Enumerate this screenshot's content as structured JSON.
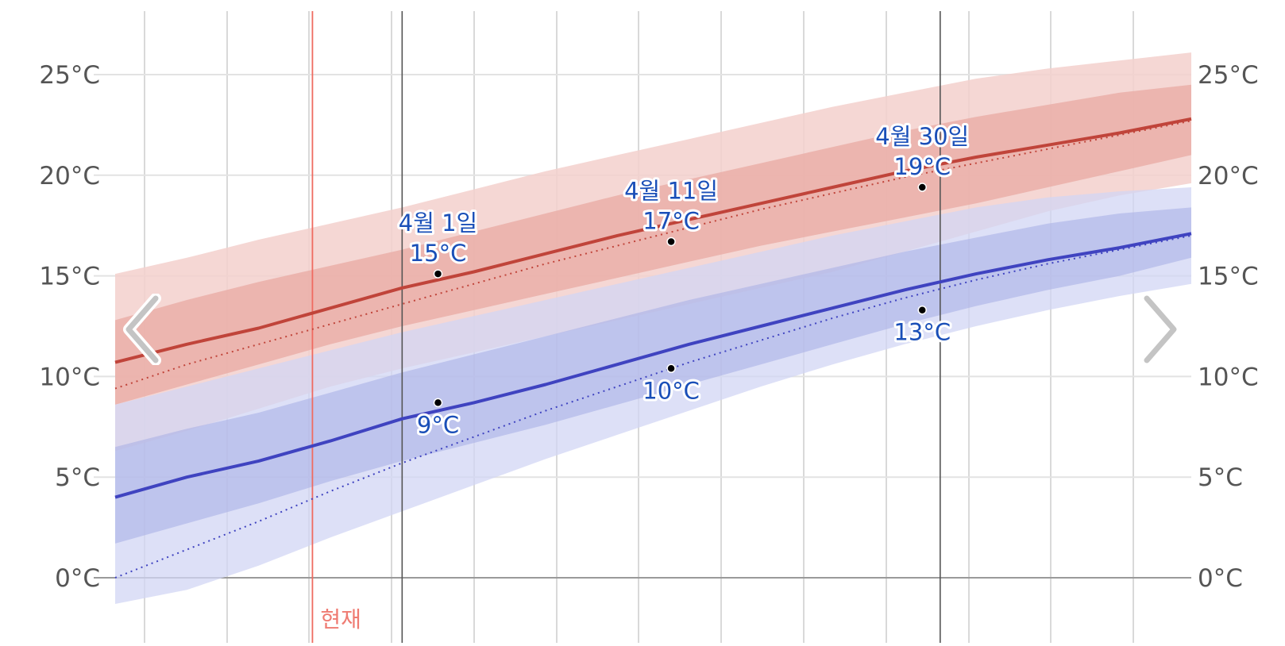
{
  "chart_data": {
    "type": "area",
    "unit": "°C",
    "y_ticks": [
      0,
      5,
      10,
      15,
      20,
      25
    ],
    "y_tick_labels": [
      "0°C",
      "5°C",
      "10°C",
      "15°C",
      "20°C",
      "25°C"
    ],
    "ylim": [
      -3.5,
      28.5
    ],
    "grid": true,
    "x": [
      -15,
      -11,
      -7,
      -3,
      1,
      5,
      9,
      13,
      17,
      21,
      25,
      29,
      33,
      37,
      41,
      45
    ],
    "series": [
      {
        "role": "high",
        "color": "#c0443a",
        "mean": [
          10.7,
          11.6,
          12.4,
          13.4,
          14.4,
          15.2,
          16.1,
          17.0,
          17.8,
          18.6,
          19.4,
          20.2,
          20.9,
          21.5,
          22.1,
          22.8
        ],
        "mean_dotted": [
          9.4,
          10.6,
          11.6,
          12.6,
          13.6,
          14.6,
          15.6,
          16.5,
          17.4,
          18.3,
          19.1,
          19.9,
          20.6,
          21.3,
          22.0,
          22.7
        ],
        "band_inner_low": [
          8.6,
          9.6,
          10.6,
          11.6,
          12.5,
          13.3,
          14.1,
          14.9,
          15.7,
          16.5,
          17.2,
          17.9,
          18.6,
          19.4,
          20.2,
          21.0
        ],
        "band_inner_high": [
          12.8,
          13.8,
          14.7,
          15.5,
          16.3,
          17.2,
          18.1,
          19.0,
          19.8,
          20.6,
          21.4,
          22.2,
          22.9,
          23.5,
          24.1,
          24.5
        ],
        "band_outer_low": [
          6.3,
          7.3,
          8.4,
          9.5,
          10.4,
          11.2,
          12.0,
          12.8,
          13.6,
          14.4,
          15.2,
          16.2,
          17.2,
          18.2,
          19.0,
          19.6
        ],
        "band_outer_high": [
          15.1,
          15.9,
          16.8,
          17.6,
          18.4,
          19.3,
          20.2,
          21.0,
          21.8,
          22.6,
          23.4,
          24.1,
          24.8,
          25.3,
          25.7,
          26.1
        ]
      },
      {
        "role": "low",
        "color": "#3f43c0",
        "mean": [
          4.0,
          5.0,
          5.8,
          6.8,
          7.9,
          8.7,
          9.6,
          10.6,
          11.6,
          12.5,
          13.4,
          14.3,
          15.1,
          15.8,
          16.4,
          17.1
        ],
        "mean_dotted": [
          0.0,
          1.4,
          2.8,
          4.3,
          5.7,
          7.0,
          8.3,
          9.5,
          10.7,
          11.8,
          12.9,
          13.9,
          14.8,
          15.6,
          16.3,
          17.0
        ],
        "band_inner_low": [
          1.7,
          2.7,
          3.7,
          4.8,
          5.8,
          6.7,
          7.6,
          8.6,
          9.6,
          10.6,
          11.6,
          12.6,
          13.5,
          14.3,
          15.0,
          15.9
        ],
        "band_inner_high": [
          6.5,
          7.4,
          8.2,
          9.2,
          10.2,
          11.1,
          12.0,
          12.9,
          13.8,
          14.6,
          15.4,
          16.2,
          16.9,
          17.6,
          18.1,
          18.4
        ],
        "band_outer_low": [
          -1.3,
          -0.6,
          0.6,
          2.0,
          3.3,
          4.6,
          5.9,
          7.1,
          8.3,
          9.5,
          10.6,
          11.6,
          12.5,
          13.3,
          14.0,
          14.6
        ],
        "band_outer_high": [
          8.6,
          9.5,
          10.4,
          11.3,
          12.2,
          13.0,
          13.8,
          14.6,
          15.4,
          16.2,
          17.0,
          17.7,
          18.4,
          18.9,
          19.2,
          19.4
        ]
      }
    ],
    "now_x": -4,
    "now_label": "현재",
    "highlight_lines_x": [
      1,
      31
    ],
    "annotations": [
      {
        "series": "high",
        "x": 3,
        "y": 15.1,
        "date": "4월 1일",
        "value": "15°C"
      },
      {
        "series": "high",
        "x": 16,
        "y": 16.7,
        "date": "4월 11일",
        "value": "17°C"
      },
      {
        "series": "high",
        "x": 30,
        "y": 19.4,
        "date": "4월 30일",
        "value": "19°C"
      },
      {
        "series": "low",
        "x": 3,
        "y": 8.7,
        "value": "9°C"
      },
      {
        "series": "low",
        "x": 16,
        "y": 10.4,
        "value": "10°C"
      },
      {
        "series": "low",
        "x": 30,
        "y": 13.3,
        "value": "13°C"
      }
    ],
    "colors": {
      "high_band_outer": "#f3d0cc",
      "high_band_inner": "#e8a7a0",
      "low_band_outer": "#d2d6f4",
      "low_band_inner": "#aab1e6",
      "now_line": "#ef6b60",
      "grid": "#d9d9d9",
      "annotation_text": "#1a4fb8"
    }
  },
  "nav": {
    "prev_icon": "chevron-left-icon",
    "next_icon": "chevron-right-icon"
  }
}
